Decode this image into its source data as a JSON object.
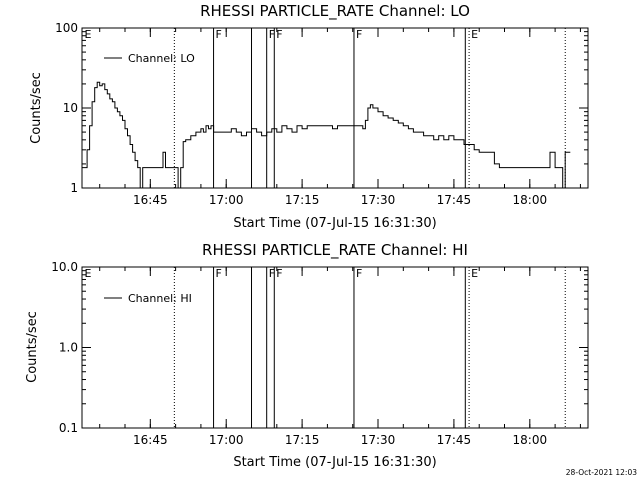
{
  "chart_data": [
    {
      "type": "line",
      "title": "RHESSI PARTICLE_RATE Channel: LO",
      "xlabel": "Start Time (07-Jul-15 16:31:30)",
      "ylabel": "Counts/sec",
      "yscale": "log",
      "ylim": [
        1,
        100
      ],
      "xlim": [
        "16:31:30",
        "18:11:30"
      ],
      "y_tick_labels": [
        "1",
        "10",
        "100"
      ],
      "x_tick_labels": [
        "16:45",
        "17:00",
        "17:15",
        "17:30",
        "17:45",
        "18:00"
      ],
      "legend": {
        "entries": [
          "Channel: LO"
        ],
        "placement": "top-left"
      },
      "grid": false,
      "series": [
        {
          "name": "Channel: LO",
          "points": [
            [
              "16:31:30",
              1.8
            ],
            [
              "16:32:00",
              1.8
            ],
            [
              "16:32:30",
              3
            ],
            [
              "16:33:00",
              6
            ],
            [
              "16:33:30",
              12
            ],
            [
              "16:34:00",
              18
            ],
            [
              "16:34:30",
              21
            ],
            [
              "16:35:00",
              19
            ],
            [
              "16:35:30",
              20
            ],
            [
              "16:36:00",
              17
            ],
            [
              "16:36:30",
              15
            ],
            [
              "16:37:00",
              13
            ],
            [
              "16:37:30",
              12
            ],
            [
              "16:38:00",
              10
            ],
            [
              "16:38:30",
              9
            ],
            [
              "16:39:00",
              8
            ],
            [
              "16:39:30",
              7
            ],
            [
              "16:40:00",
              5.5
            ],
            [
              "16:40:30",
              4.5
            ],
            [
              "16:41:00",
              3.5
            ],
            [
              "16:41:30",
              2.8
            ],
            [
              "16:42:00",
              2.2
            ],
            [
              "16:42:30",
              1.8
            ],
            [
              "16:43:00",
              1
            ],
            [
              "16:43:30",
              1.8
            ],
            [
              "16:44:00",
              1.8
            ],
            [
              "16:45:00",
              1.8
            ],
            [
              "16:46:00",
              1.8
            ],
            [
              "16:47:00",
              1.8
            ],
            [
              "16:47:30",
              2.8
            ],
            [
              "16:48:00",
              1.8
            ],
            [
              "16:49:00",
              1.8
            ],
            [
              "16:50:00",
              1.8
            ],
            [
              "16:50:30",
              1
            ],
            [
              "16:51:00",
              1.8
            ],
            [
              "16:51:30",
              3.8
            ],
            [
              "16:52:00",
              4
            ],
            [
              "16:53:00",
              4.5
            ],
            [
              "16:54:00",
              5
            ],
            [
              "16:55:00",
              5.5
            ],
            [
              "16:55:30",
              5
            ],
            [
              "16:56:00",
              6
            ],
            [
              "16:56:30",
              5.5
            ],
            [
              "16:57:00",
              6
            ],
            [
              "16:57:30",
              5
            ],
            [
              "16:58:00",
              5
            ],
            [
              "16:59:00",
              5
            ],
            [
              "17:00:00",
              5
            ],
            [
              "17:01:00",
              5.5
            ],
            [
              "17:02:00",
              5
            ],
            [
              "17:03:00",
              4.5
            ],
            [
              "17:04:00",
              5
            ],
            [
              "17:05:00",
              5.5
            ],
            [
              "17:06:00",
              5
            ],
            [
              "17:07:00",
              4.5
            ],
            [
              "17:08:00",
              5
            ],
            [
              "17:09:00",
              5.5
            ],
            [
              "17:10:00",
              5
            ],
            [
              "17:11:00",
              6
            ],
            [
              "17:12:00",
              5.5
            ],
            [
              "17:13:00",
              5
            ],
            [
              "17:14:00",
              6
            ],
            [
              "17:15:00",
              5.5
            ],
            [
              "17:16:00",
              6
            ],
            [
              "17:17:00",
              6
            ],
            [
              "17:18:00",
              6
            ],
            [
              "17:19:00",
              6
            ],
            [
              "17:20:00",
              6
            ],
            [
              "17:21:00",
              5.5
            ],
            [
              "17:22:00",
              6
            ],
            [
              "17:23:00",
              6
            ],
            [
              "17:24:00",
              6
            ],
            [
              "17:25:00",
              6
            ],
            [
              "17:26:00",
              6
            ],
            [
              "17:27:00",
              5.5
            ],
            [
              "17:27:30",
              7
            ],
            [
              "17:28:00",
              10
            ],
            [
              "17:28:30",
              11
            ],
            [
              "17:29:00",
              10
            ],
            [
              "17:30:00",
              9
            ],
            [
              "17:31:00",
              8
            ],
            [
              "17:32:00",
              7.5
            ],
            [
              "17:33:00",
              7
            ],
            [
              "17:34:00",
              6.5
            ],
            [
              "17:35:00",
              6
            ],
            [
              "17:36:00",
              5.5
            ],
            [
              "17:37:00",
              5
            ],
            [
              "17:38:00",
              5
            ],
            [
              "17:39:00",
              4.5
            ],
            [
              "17:40:00",
              4.5
            ],
            [
              "17:41:00",
              4
            ],
            [
              "17:42:00",
              4.5
            ],
            [
              "17:43:00",
              4
            ],
            [
              "17:44:00",
              4.5
            ],
            [
              "17:45:00",
              4
            ],
            [
              "17:46:00",
              4
            ],
            [
              "17:47:00",
              3.5
            ],
            [
              "17:48:00",
              3.5
            ],
            [
              "17:49:00",
              3
            ],
            [
              "17:50:00",
              2.8
            ],
            [
              "17:51:00",
              2.8
            ],
            [
              "17:52:00",
              2.8
            ],
            [
              "17:53:00",
              2
            ],
            [
              "17:54:00",
              1.8
            ],
            [
              "17:55:00",
              1.8
            ],
            [
              "17:56:00",
              1.8
            ],
            [
              "17:57:00",
              1.8
            ],
            [
              "17:58:00",
              1.8
            ],
            [
              "17:59:00",
              1.8
            ],
            [
              "18:00:00",
              1.8
            ],
            [
              "18:01:00",
              1.8
            ],
            [
              "18:02:00",
              1.8
            ],
            [
              "18:03:00",
              1.8
            ],
            [
              "18:04:00",
              2.8
            ],
            [
              "18:05:00",
              1.8
            ],
            [
              "18:06:00",
              1.8
            ],
            [
              "18:06:30",
              1
            ],
            [
              "18:07:00",
              2.8
            ],
            [
              "18:08:00",
              2.8
            ]
          ]
        }
      ],
      "markers": [
        {
          "label": "E",
          "time": "16:31:30",
          "style": "dotted"
        },
        {
          "label": "",
          "time": "16:49:45",
          "style": "dotted"
        },
        {
          "label": "F",
          "time": "16:57:30",
          "style": "solid"
        },
        {
          "label": "",
          "time": "17:05:00",
          "style": "solid"
        },
        {
          "label": "F",
          "time": "17:08:00",
          "style": "solid"
        },
        {
          "label": "F",
          "time": "17:09:30",
          "style": "solid"
        },
        {
          "label": "F",
          "time": "17:25:15",
          "style": "solid"
        },
        {
          "label": "",
          "time": "17:47:15",
          "style": "solid"
        },
        {
          "label": "E",
          "time": "17:48:00",
          "style": "dotted"
        },
        {
          "label": "",
          "time": "18:07:00",
          "style": "dotted"
        }
      ]
    },
    {
      "type": "line",
      "title": "RHESSI PARTICLE_RATE Channel: HI",
      "xlabel": "Start Time (07-Jul-15 16:31:30)",
      "ylabel": "Counts/sec",
      "yscale": "log",
      "ylim": [
        0.1,
        10
      ],
      "xlim": [
        "16:31:30",
        "18:11:30"
      ],
      "y_tick_labels": [
        "0.1",
        "1.0",
        "10.0"
      ],
      "x_tick_labels": [
        "16:45",
        "17:00",
        "17:15",
        "17:30",
        "17:45",
        "18:00"
      ],
      "legend": {
        "entries": [
          "Channel: HI"
        ],
        "placement": "top-left"
      },
      "grid": false,
      "series": [
        {
          "name": "Channel: HI",
          "points": []
        }
      ],
      "markers": [
        {
          "label": "E",
          "time": "16:31:30",
          "style": "dotted"
        },
        {
          "label": "",
          "time": "16:49:45",
          "style": "dotted"
        },
        {
          "label": "F",
          "time": "16:57:30",
          "style": "solid"
        },
        {
          "label": "",
          "time": "17:05:00",
          "style": "solid"
        },
        {
          "label": "F",
          "time": "17:08:00",
          "style": "solid"
        },
        {
          "label": "F",
          "time": "17:09:30",
          "style": "solid"
        },
        {
          "label": "F",
          "time": "17:25:15",
          "style": "solid"
        },
        {
          "label": "",
          "time": "17:47:15",
          "style": "solid"
        },
        {
          "label": "E",
          "time": "17:48:00",
          "style": "dotted"
        },
        {
          "label": "",
          "time": "18:07:00",
          "style": "dotted"
        }
      ]
    }
  ],
  "footer": {
    "timestamp": "28-Oct-2021 12:03"
  },
  "colors": {
    "background": "#ffffff",
    "foreground": "#000000"
  }
}
